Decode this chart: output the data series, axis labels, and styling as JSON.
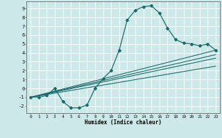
{
  "xlabel": "Humidex (Indice chaleur)",
  "xlim": [
    -0.5,
    23.5
  ],
  "ylim": [
    -2.8,
    9.8
  ],
  "xticks": [
    0,
    1,
    2,
    3,
    4,
    5,
    6,
    7,
    8,
    9,
    10,
    11,
    12,
    13,
    14,
    15,
    16,
    17,
    18,
    19,
    20,
    21,
    22,
    23
  ],
  "yticks": [
    -2,
    -1,
    0,
    1,
    2,
    3,
    4,
    5,
    6,
    7,
    8,
    9
  ],
  "bg_color": "#cce8e8",
  "line_color": "#1a6b6b",
  "grid_color": "#ffffff",
  "main_x": [
    0,
    1,
    2,
    3,
    4,
    5,
    6,
    7,
    8,
    9,
    10,
    11,
    12,
    13,
    14,
    15,
    16,
    17,
    18,
    19,
    20,
    21,
    22,
    23
  ],
  "main_y": [
    -1.0,
    -1.0,
    -0.8,
    0.0,
    -1.5,
    -2.2,
    -2.2,
    -1.9,
    0.0,
    1.1,
    2.0,
    4.3,
    7.7,
    8.8,
    9.2,
    9.3,
    8.5,
    6.8,
    5.5,
    5.1,
    5.0,
    4.8,
    5.0,
    4.3
  ],
  "line2_x": [
    0,
    23
  ],
  "line2_y": [
    -1.0,
    4.3
  ],
  "line3_x": [
    0,
    23
  ],
  "line3_y": [
    -1.0,
    3.8
  ],
  "line4_x": [
    0,
    23
  ],
  "line4_y": [
    -1.0,
    3.4
  ],
  "line5_x": [
    0,
    23
  ],
  "line5_y": [
    -1.0,
    2.5
  ]
}
